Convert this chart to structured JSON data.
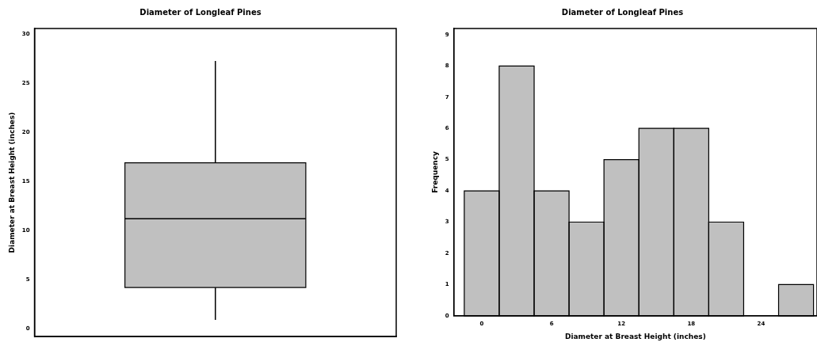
{
  "chart_data": [
    {
      "type": "box",
      "title": "Diameter of Longleaf Pines",
      "ylabel": "Diameter at Breast Height (inches)",
      "categories": [
        null
      ],
      "color": "#c0c0c0",
      "boxes": [
        {
          "low": 0.9,
          "q1": 4.2,
          "median": 11.2,
          "q3": 16.9,
          "high": 27.3
        }
      ],
      "ylim": [
        -0.8,
        30.6
      ],
      "yticks": [
        0,
        5,
        10,
        15,
        20,
        25,
        30
      ],
      "tick_labels": "y",
      "grid": false,
      "legend": false
    },
    {
      "type": "histogram",
      "title": "Diameter of Longleaf Pines",
      "xlabel": "Diameter at Breast Height (inches)",
      "ylabel": "Frequency",
      "color": "#c0c0c0",
      "bins": [
        -1.5,
        1.5,
        4.5,
        7.5,
        10.5,
        13.5,
        16.5,
        19.5,
        22.5,
        25.5,
        28.5
      ],
      "values": [
        4,
        8,
        4,
        3,
        5,
        6,
        6,
        3,
        0,
        1
      ],
      "xlim": [
        -2.4,
        28.8
      ],
      "xticks": [
        0,
        6,
        12,
        18,
        24
      ],
      "ylim": [
        0,
        9.2
      ],
      "yticks": [
        0,
        1,
        2,
        3,
        4,
        5,
        6,
        7,
        8,
        9
      ],
      "grid": false,
      "legend": false
    }
  ]
}
